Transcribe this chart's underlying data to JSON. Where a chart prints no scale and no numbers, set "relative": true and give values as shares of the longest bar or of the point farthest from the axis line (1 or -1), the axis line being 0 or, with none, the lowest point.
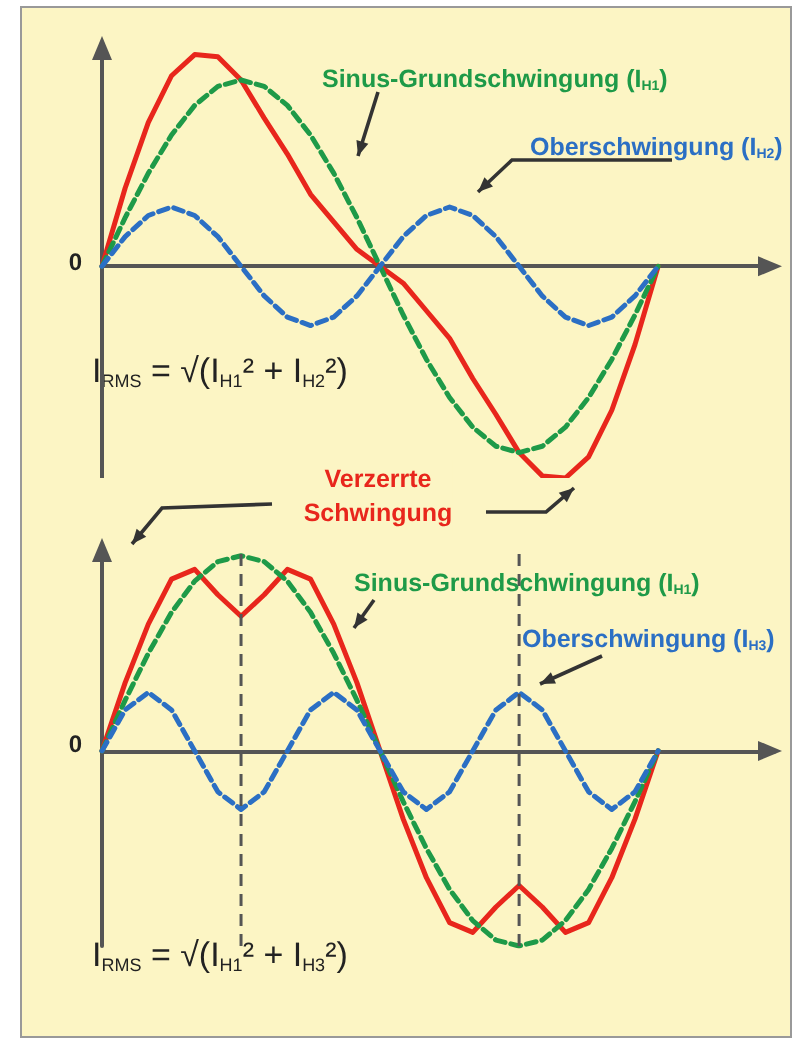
{
  "chart_data": [
    {
      "type": "line",
      "relative": true,
      "categories": [
        null,
        null,
        null,
        null,
        null,
        null,
        null,
        null,
        null,
        null,
        null,
        null,
        null,
        null,
        null,
        null,
        null,
        null,
        null,
        null,
        null,
        null,
        null,
        null,
        null
      ],
      "annotations": [
        "0",
        "I$_{RMS}$ = √(I$_{H1}$² + I$_{H2}$²)"
      ],
      "series": [
        {
          "color": "#e8261c",
          "line_style": "solid",
          "values": [
            0,
            0.37,
            0.68,
            0.9,
            1,
            0.99,
            0.88,
            0.7,
            0.53,
            0.34,
            0.21,
            0.08,
            0,
            -0.08,
            -0.21,
            -0.34,
            -0.53,
            -0.7,
            -0.88,
            -0.99,
            -1,
            -0.9,
            -0.68,
            -0.37,
            0
          ]
        },
        {
          "name": "Sinus-Grundschwingung (I$_{H1}$)",
          "color": "#1e9a48",
          "line_style": "dashed",
          "values": [
            0,
            0.23,
            0.44,
            0.62,
            0.76,
            0.85,
            0.88,
            0.85,
            0.76,
            0.62,
            0.44,
            0.23,
            0,
            -0.23,
            -0.44,
            -0.62,
            -0.76,
            -0.85,
            -0.88,
            -0.85,
            -0.76,
            -0.62,
            -0.44,
            -0.23,
            0
          ]
        },
        {
          "name": "Oberschwingung (I$_{H2}$)",
          "color": "#2b6fc4",
          "line_style": "dashed",
          "values": [
            0,
            0.14,
            0.24,
            0.28,
            0.24,
            0.14,
            0,
            -0.14,
            -0.24,
            -0.28,
            -0.24,
            -0.14,
            0,
            0.14,
            0.24,
            0.28,
            0.24,
            0.14,
            0,
            -0.14,
            -0.24,
            -0.28,
            -0.24,
            -0.14,
            0
          ]
        }
      ]
    },
    {
      "type": "line",
      "relative": true,
      "categories": [
        null,
        null,
        null,
        null,
        null,
        null,
        null,
        null,
        null,
        null,
        null,
        null,
        null,
        null,
        null,
        null,
        null,
        null,
        null,
        null,
        null,
        null,
        null,
        null,
        null
      ],
      "annotations": [
        "0",
        "I$_{RMS}$ = √(I$_{H1}$² + I$_{H3}$²)"
      ],
      "series": [
        {
          "name": "Verzerrte Schwingung",
          "color": "#e8261c",
          "line_style": "solid",
          "values": [
            0,
            0.35,
            0.65,
            0.88,
            0.93,
            0.8,
            0.69,
            0.8,
            0.93,
            0.88,
            0.65,
            0.35,
            0,
            -0.35,
            -0.65,
            -0.88,
            -0.93,
            -0.8,
            -0.69,
            -0.8,
            -0.93,
            -0.88,
            -0.65,
            -0.35,
            0
          ]
        },
        {
          "name": "Sinus-Grundschwingung (I$_{H1}$)",
          "color": "#1e9a48",
          "line_style": "dashed",
          "values": [
            0,
            0.26,
            0.5,
            0.71,
            0.87,
            0.97,
            1,
            0.97,
            0.87,
            0.71,
            0.5,
            0.26,
            0,
            -0.26,
            -0.5,
            -0.71,
            -0.87,
            -0.97,
            -1,
            -0.97,
            -0.87,
            -0.71,
            -0.5,
            -0.26,
            0
          ]
        },
        {
          "name": "Oberschwingung (I$_{H3}$)",
          "color": "#2b6fc4",
          "line_style": "dashed",
          "values": [
            0,
            0.21,
            0.3,
            0.21,
            0,
            -0.21,
            -0.3,
            -0.21,
            0,
            0.21,
            0.3,
            0.21,
            0,
            -0.21,
            -0.3,
            -0.21,
            0,
            0.21,
            0.3,
            0.21,
            0,
            -0.21,
            -0.3,
            -0.21,
            0
          ]
        }
      ]
    }
  ]
}
